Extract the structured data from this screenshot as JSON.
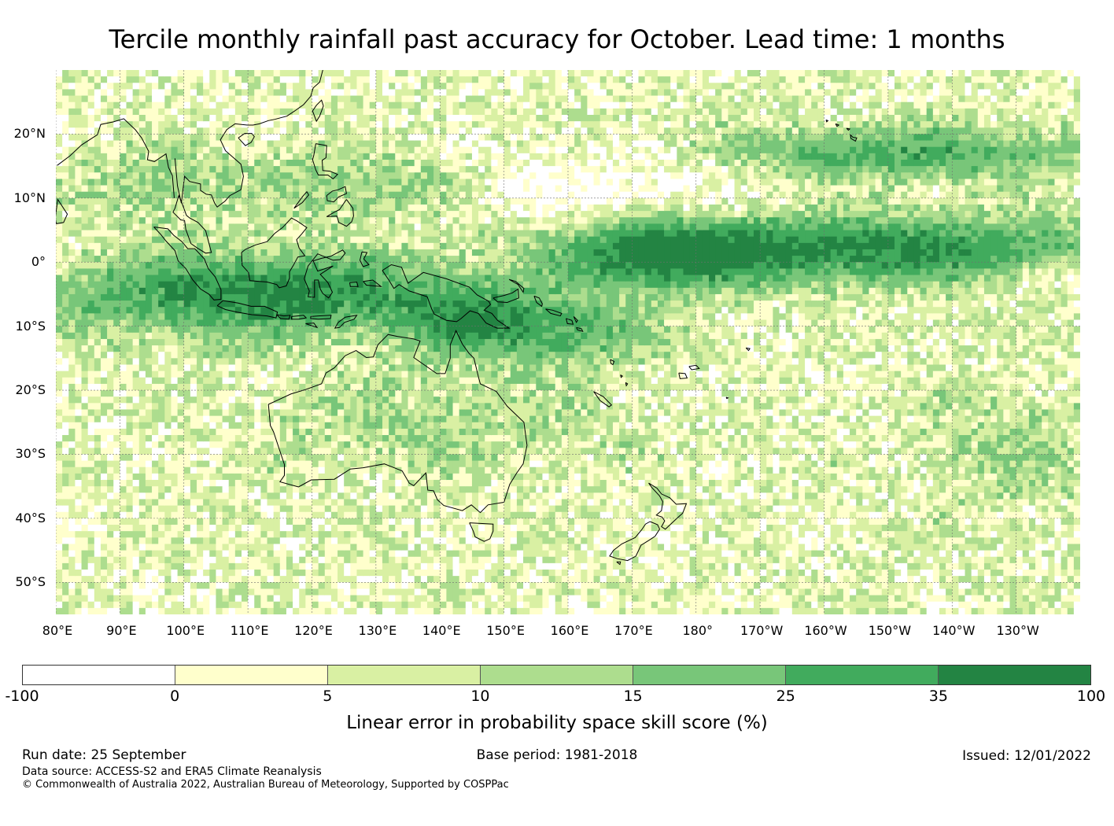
{
  "title": "Tercile monthly rainfall past accuracy for October. Lead time: 1 months",
  "map": {
    "projection": "equirectangular",
    "lon_range_east_deg": [
      80,
      240
    ],
    "lat_range_deg": [
      -55,
      30
    ],
    "lat_ticks": [
      {
        "value": 20,
        "label": "20°N"
      },
      {
        "value": 10,
        "label": "10°N"
      },
      {
        "value": 0,
        "label": "0°"
      },
      {
        "value": -10,
        "label": "10°S"
      },
      {
        "value": -20,
        "label": "20°S"
      },
      {
        "value": -30,
        "label": "30°S"
      },
      {
        "value": -40,
        "label": "40°S"
      },
      {
        "value": -50,
        "label": "50°S"
      }
    ],
    "lon_ticks": [
      {
        "value": 80,
        "label": "80°E"
      },
      {
        "value": 90,
        "label": "90°E"
      },
      {
        "value": 100,
        "label": "100°E"
      },
      {
        "value": 110,
        "label": "110°E"
      },
      {
        "value": 120,
        "label": "120°E"
      },
      {
        "value": 130,
        "label": "130°E"
      },
      {
        "value": 140,
        "label": "140°E"
      },
      {
        "value": 150,
        "label": "150°E"
      },
      {
        "value": 160,
        "label": "160°E"
      },
      {
        "value": 170,
        "label": "170°E"
      },
      {
        "value": 180,
        "label": "180°"
      },
      {
        "value": 190,
        "label": "170°W"
      },
      {
        "value": 200,
        "label": "160°W"
      },
      {
        "value": 210,
        "label": "150°W"
      },
      {
        "value": 220,
        "label": "140°W"
      },
      {
        "value": 230,
        "label": "130°W"
      }
    ],
    "field_description": "gridded skill score field, highest along equatorial band",
    "skill_bands": [
      {
        "name": "equatorial-band-east",
        "lon": [
          165,
          240
        ],
        "lat": [
          -3,
          7
        ],
        "level": 35
      },
      {
        "name": "indonesian-band",
        "lon": [
          82,
          150
        ],
        "lat": [
          -12,
          2
        ],
        "level": 35
      },
      {
        "name": "northern-pacific-band",
        "lon": [
          175,
          240
        ],
        "lat": [
          14,
          22
        ],
        "level": 25
      }
    ],
    "coastline_color": "#000000",
    "grid_color": "#6e6e6e"
  },
  "colorbar": {
    "bounds": [
      "-100",
      "0",
      "5",
      "10",
      "15",
      "25",
      "35",
      "100"
    ],
    "colors": [
      "#ffffff",
      "#ffffcc",
      "#d9f0a3",
      "#addd8e",
      "#78c679",
      "#41ab5d",
      "#238443"
    ],
    "label": "Linear error in probability space skill score (%)"
  },
  "footer": {
    "run_date": "Run date: 25 September",
    "base_period": "Base period: 1981-2018",
    "issued": "Issued: 12/01/2022",
    "data_source": "Data source: ACCESS-S2 and ERA5 Climate Reanalysis",
    "copyright": "© Commonwealth of Australia 2022, Australian Bureau of Meteorology, Supported by COSPPac"
  }
}
